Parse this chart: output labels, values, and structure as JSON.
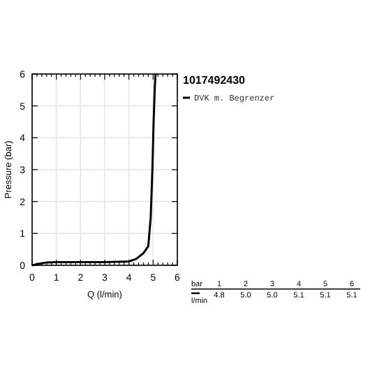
{
  "chart_data": {
    "type": "line",
    "title": "1017492430",
    "xlabel": "Q (l/min)",
    "ylabel": "Pressure (bar)",
    "x": [
      0,
      0.3,
      0.6,
      1,
      2,
      3,
      4,
      4.3,
      4.6,
      4.8,
      4.9,
      4.97,
      5.02,
      5.07,
      5.1
    ],
    "series": [
      {
        "name": "DVK m. Begrenzer",
        "color": "#000000",
        "values": [
          0,
          0.05,
          0.09,
          0.1,
          0.1,
          0.1,
          0.12,
          0.2,
          0.38,
          0.6,
          1.5,
          3,
          4.5,
          5.6,
          6
        ]
      }
    ],
    "xlim": [
      0,
      6
    ],
    "ylim": [
      0,
      6
    ],
    "xticks": [
      0,
      1,
      2,
      3,
      4,
      5,
      6
    ],
    "yticks": [
      0,
      1,
      2,
      3,
      4,
      5,
      6
    ],
    "grid": true,
    "legend": "top right",
    "line_style": "solid",
    "annotations": [
      "bar",
      "1",
      "2",
      "3",
      "4",
      "5",
      "6",
      "l/min",
      "4.8",
      "5.0",
      "5.0",
      "5.1",
      "5.1",
      "5.1"
    ]
  }
}
